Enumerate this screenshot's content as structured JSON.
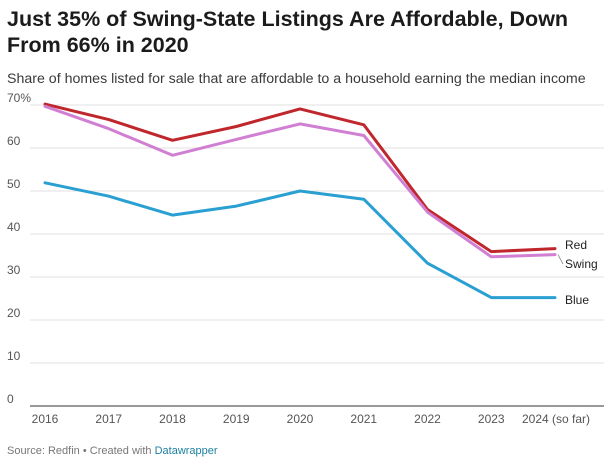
{
  "header": {
    "title": "Just 35% of Swing-State Listings Are Affordable, Down From 66% in 2020",
    "subtitle": "Share of homes listed for sale that are affordable to a household earning the median income"
  },
  "footer": {
    "source": "Source: Redfin",
    "separator": "•",
    "created_with": "Created with",
    "tool": "Datawrapper"
  },
  "chart_data": {
    "type": "line",
    "title": "Just 35% of Swing-State Listings Are Affordable, Down From 66% in 2020",
    "subtitle": "Share of homes listed for sale that are affordable to a household earning the median income",
    "categories": [
      "2016",
      "2017",
      "2018",
      "2019",
      "2020",
      "2021",
      "2022",
      "2023",
      "2024 (so far)"
    ],
    "y_ticks": [
      0,
      10,
      20,
      30,
      40,
      50,
      60,
      70
    ],
    "y_tick_labels": [
      "0",
      "10",
      "20",
      "30",
      "40",
      "50",
      "60",
      "70%"
    ],
    "ylim": [
      0,
      70
    ],
    "grid": "horizontal",
    "legend": "direct labels at line ends",
    "series": [
      {
        "name": "Red",
        "color": "#c0272d",
        "values": [
          70.2,
          66.6,
          61.8,
          65.0,
          69.1,
          65.4,
          45.7,
          35.9,
          36.6
        ]
      },
      {
        "name": "Swing",
        "color": "#d17fd3",
        "values": [
          69.7,
          64.5,
          58.3,
          62.0,
          65.6,
          62.9,
          45.1,
          34.7,
          35.2
        ]
      },
      {
        "name": "Blue",
        "color": "#2a9fd2",
        "values": [
          51.9,
          48.8,
          44.4,
          46.5,
          50.0,
          48.1,
          33.2,
          25.2,
          25.2
        ]
      }
    ]
  }
}
